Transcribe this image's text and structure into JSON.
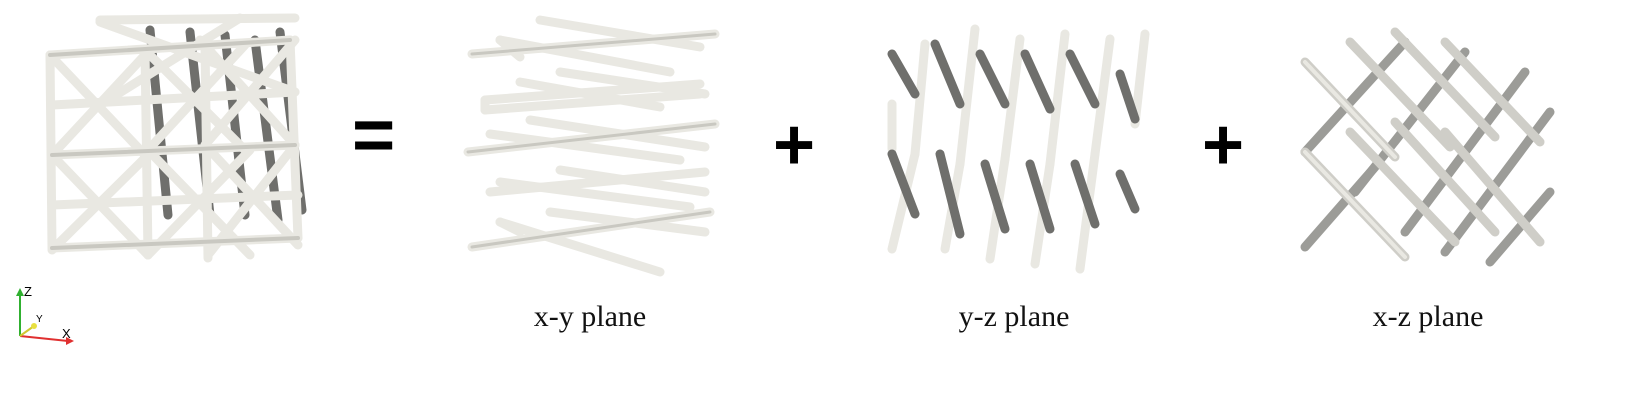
{
  "operators": {
    "equals": "=",
    "plus_1": "+",
    "plus_2": "+"
  },
  "captions": {
    "xy": "x-y plane",
    "yz": "y-z plane",
    "xz": "x-z plane"
  },
  "axes": {
    "z": "Z",
    "y": "Y",
    "x": "X"
  },
  "colors": {
    "strut_light": "#e9e8e2",
    "strut_mid": "#c9c8c1",
    "strut_dark": "#6f6f6c",
    "axis_x": "#e03030",
    "axis_y": "#e8e040",
    "axis_z": "#30b030"
  }
}
